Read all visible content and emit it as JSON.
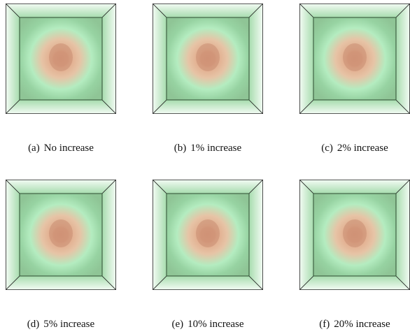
{
  "subfigures": [
    {
      "label": "(a)",
      "caption": "No increase"
    },
    {
      "label": "(b)",
      "caption": "1% increase"
    },
    {
      "label": "(c)",
      "caption": "2% increase"
    },
    {
      "label": "(d)",
      "caption": "5% increase"
    },
    {
      "label": "(e)",
      "caption": "10% increase"
    },
    {
      "label": "(f)",
      "caption": "20% increase"
    }
  ]
}
